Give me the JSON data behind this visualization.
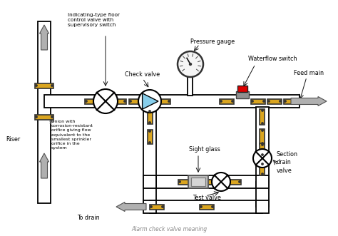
{
  "bg_color": "#ffffff",
  "pipe_color": "#000000",
  "pipe_fill": "#ffffff",
  "flange_color": "#DAA520",
  "arrow_fill": "#A0A0A0",
  "arrow_edge": "#505050",
  "text_color": "#000000",
  "label_fontsize": 5.8,
  "labels": {
    "indicating_valve": "Indicating-type floor\ncontrol valve with\nsupervisory switch",
    "check_valve": "Check valve",
    "pressure_gauge": "Pressure gauge",
    "waterflow_switch": "Waterflow switch",
    "feed_main": "Feed main",
    "sight_glass": "Sight glass",
    "test_valve": "Test valve",
    "section_drain": "Section\ndrain\nvalve",
    "riser": "Riser",
    "union": "Union with\ncorrosion-resistant\norifice giving flow\nequivalent to the\nsmallest sprinkler\norifice in the\nsystem",
    "to_drain": "To drain",
    "alarm_meaning": "Alarm check valve meaning"
  }
}
